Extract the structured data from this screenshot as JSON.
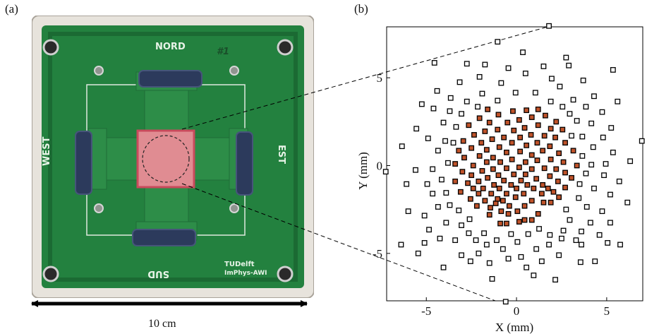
{
  "figure": {
    "panel_a_label": "(a)",
    "panel_b_label": "(b)",
    "scale_bar_label": "10 cm"
  },
  "photo": {
    "board_labels": {
      "north": "NORD",
      "south": "SUD",
      "west": "WEST",
      "east": "EST",
      "number": "#1",
      "logo_line1": "TUDelft",
      "logo_line2": "ImPhys-AWI"
    },
    "colors": {
      "pcb": "#23813f",
      "pcb_dark": "#1b6a33",
      "acrylic": "#e7e3dc",
      "flex_cable": "#2c3a5c",
      "transducer": "#e08c92",
      "transducer_border": "#c94a5c"
    }
  },
  "chart_data": {
    "type": "scatter",
    "title": "",
    "xlabel": "X (mm)",
    "ylabel": "Y (mm)",
    "xlim": [
      -7.2,
      7.0
    ],
    "ylim": [
      -7.7,
      7.9
    ],
    "xticks": [
      -5,
      0,
      5
    ],
    "yticks": [
      -5,
      0,
      5
    ],
    "grid": false,
    "legend": "none",
    "colors": {
      "inner": "#c0532a",
      "outer": "#000000"
    },
    "series": [
      {
        "marker": "filled-square",
        "points": [
          [
            -0.9,
            -3.3
          ],
          [
            -0.55,
            -3.3
          ],
          [
            0.15,
            -3.2
          ],
          [
            0.85,
            -3.1
          ],
          [
            0.45,
            -3.1
          ],
          [
            -1.5,
            -2.8
          ],
          [
            -0.45,
            -2.75
          ],
          [
            1.2,
            -2.75
          ],
          [
            -0.85,
            -2.6
          ],
          [
            0.05,
            -2.6
          ],
          [
            -1.45,
            -2.4
          ],
          [
            -2.2,
            -2.3
          ],
          [
            -0.4,
            -2.3
          ],
          [
            0.45,
            -2.3
          ],
          [
            -1.15,
            -2.15
          ],
          [
            1.9,
            -2.1
          ],
          [
            1.5,
            -2.1
          ],
          [
            -1.75,
            -2
          ],
          [
            -0.75,
            -2
          ],
          [
            0.85,
            -2
          ],
          [
            -2.55,
            -1.9
          ],
          [
            -1.05,
            -1.9
          ],
          [
            2.35,
            -1.8
          ],
          [
            -0.05,
            -1.8
          ],
          [
            -2.1,
            -1.6
          ],
          [
            -1.4,
            -1.6
          ],
          [
            -0.55,
            -1.6
          ],
          [
            0.4,
            -1.6
          ],
          [
            1.4,
            -1.6
          ],
          [
            -3.1,
            -1.5
          ],
          [
            2.05,
            -1.5
          ],
          [
            -1.85,
            -1.3
          ],
          [
            -2.4,
            -1.3
          ],
          [
            -0.95,
            -1.3
          ],
          [
            0,
            -1.3
          ],
          [
            0.95,
            -1.3
          ],
          [
            1.75,
            -1.3
          ],
          [
            2.7,
            -1.25
          ],
          [
            -1.25,
            -1.1
          ],
          [
            -0.3,
            -1.1
          ],
          [
            0.6,
            -1.1
          ],
          [
            1.45,
            -1.1
          ],
          [
            -2.7,
            -1
          ],
          [
            -3.4,
            -0.9
          ],
          [
            2.3,
            -0.9
          ],
          [
            -2.1,
            -0.9
          ],
          [
            -0.7,
            -0.85
          ],
          [
            0.25,
            -0.85
          ],
          [
            1.1,
            -0.75
          ],
          [
            3.05,
            -0.7
          ],
          [
            -1.6,
            -0.7
          ],
          [
            1.85,
            -0.6
          ],
          [
            -1,
            -0.55
          ],
          [
            -2.5,
            -0.55
          ],
          [
            0.5,
            -0.5
          ],
          [
            -0.15,
            -0.5
          ],
          [
            2.7,
            -0.4
          ],
          [
            -3,
            -0.35
          ],
          [
            -1.9,
            -0.3
          ],
          [
            -1.3,
            -0.2
          ],
          [
            0.85,
            -0.2
          ],
          [
            2.2,
            -0.2
          ],
          [
            1.55,
            -0.15
          ],
          [
            -0.55,
            -0.15
          ],
          [
            0.15,
            -0.1
          ],
          [
            3.35,
            0
          ],
          [
            -2.4,
            0
          ],
          [
            -3.4,
            0.1
          ],
          [
            -0.9,
            0.2
          ],
          [
            -1.65,
            0.2
          ],
          [
            0.5,
            0.2
          ],
          [
            2.6,
            0.2
          ],
          [
            1.15,
            0.3
          ],
          [
            -0.25,
            0.35
          ],
          [
            1.9,
            0.35
          ],
          [
            -2.9,
            0.45
          ],
          [
            -1.3,
            0.45
          ],
          [
            0.85,
            0.6
          ],
          [
            -2.05,
            0.55
          ],
          [
            2.35,
            0.7
          ],
          [
            -0.55,
            0.75
          ],
          [
            -3.2,
            0.85
          ],
          [
            3.15,
            0.85
          ],
          [
            0.2,
            0.8
          ],
          [
            1.45,
            0.85
          ],
          [
            -1.65,
            0.9
          ],
          [
            -2.5,
            1
          ],
          [
            1.85,
            1.1
          ],
          [
            -0.95,
            1.05
          ],
          [
            0.55,
            1.15
          ],
          [
            2.7,
            1.3
          ],
          [
            -1.95,
            1.3
          ],
          [
            -0.25,
            1.3
          ],
          [
            1.15,
            1.3
          ],
          [
            -2.95,
            1.4
          ],
          [
            -1.35,
            1.5
          ],
          [
            2.15,
            1.6
          ],
          [
            0.2,
            1.6
          ],
          [
            -0.7,
            1.6
          ],
          [
            -2.35,
            1.75
          ],
          [
            1.55,
            1.7
          ],
          [
            0.8,
            1.75
          ],
          [
            -1.75,
            1.95
          ],
          [
            -0.15,
            2
          ],
          [
            2.55,
            2.05
          ],
          [
            -1.05,
            2.05
          ],
          [
            1.9,
            2.1
          ],
          [
            0.45,
            2.15
          ],
          [
            -2.65,
            2.3
          ],
          [
            1.2,
            2.3
          ],
          [
            -1.5,
            2.45
          ],
          [
            -0.5,
            2.45
          ],
          [
            2.2,
            2.5
          ],
          [
            0.15,
            2.6
          ],
          [
            -2.05,
            2.7
          ],
          [
            0.85,
            2.75
          ],
          [
            1.6,
            2.85
          ],
          [
            -1,
            2.9
          ],
          [
            -0.2,
            3.1
          ],
          [
            0.55,
            3.15
          ],
          [
            1.2,
            3.2
          ],
          [
            -1.6,
            3.2
          ]
        ]
      },
      {
        "marker": "open-square",
        "points": [
          [
            1.8,
            7.95
          ],
          [
            -1.05,
            7.05
          ],
          [
            0.35,
            6.45
          ],
          [
            2.75,
            6.15
          ],
          [
            -4.55,
            5.85
          ],
          [
            -2.75,
            5.8
          ],
          [
            -1.75,
            5.75
          ],
          [
            -0.45,
            5.55
          ],
          [
            1.5,
            5.65
          ],
          [
            2.9,
            5.7
          ],
          [
            5.35,
            5.45
          ],
          [
            -2.05,
            5.05
          ],
          [
            1.95,
            4.95
          ],
          [
            0.5,
            5.25
          ],
          [
            -3.15,
            4.75
          ],
          [
            -0.85,
            4.7
          ],
          [
            3.7,
            4.85
          ],
          [
            -4.4,
            4.25
          ],
          [
            2.4,
            4.5
          ],
          [
            -3.65,
            3.85
          ],
          [
            4.3,
            3.95
          ],
          [
            -1.9,
            4.1
          ],
          [
            -0.05,
            4.15
          ],
          [
            1.05,
            4.15
          ],
          [
            -2.75,
            3.65
          ],
          [
            3.15,
            3.75
          ],
          [
            -1.05,
            3.7
          ],
          [
            1.9,
            3.65
          ],
          [
            -5.25,
            3.5
          ],
          [
            -4.6,
            3.25
          ],
          [
            2.55,
            3.35
          ],
          [
            -2.15,
            3.35
          ],
          [
            5.6,
            3.65
          ],
          [
            3.85,
            3.35
          ],
          [
            4.75,
            3.05
          ],
          [
            -3.7,
            3.1
          ],
          [
            -3.05,
            2.95
          ],
          [
            2.95,
            2.95
          ],
          [
            -4.05,
            2.45
          ],
          [
            3.35,
            2.55
          ],
          [
            4.15,
            2.4
          ],
          [
            5.25,
            2.15
          ],
          [
            -5.55,
            2.1
          ],
          [
            -3.35,
            2.2
          ],
          [
            4.8,
            1.6
          ],
          [
            3.65,
            1.65
          ],
          [
            -4.9,
            1.55
          ],
          [
            -3.95,
            1.4
          ],
          [
            3.05,
            1.7
          ],
          [
            6.95,
            1.4
          ],
          [
            -3.5,
            1.3
          ],
          [
            4.25,
            1.05
          ],
          [
            -6.35,
            1.1
          ],
          [
            -4.35,
            0.85
          ],
          [
            5.35,
            0.75
          ],
          [
            3.65,
            0.55
          ],
          [
            -3.8,
            0.15
          ],
          [
            4.95,
            0.1
          ],
          [
            4.15,
            0.05
          ],
          [
            6.3,
            0.25
          ],
          [
            -4.65,
            -0.2
          ],
          [
            -5.6,
            -0.25
          ],
          [
            -7.25,
            -0.35
          ],
          [
            3.85,
            -0.45
          ],
          [
            4.85,
            -0.55
          ],
          [
            -4.15,
            -0.8
          ],
          [
            3.5,
            -1.05
          ],
          [
            -4.95,
            -1.05
          ],
          [
            5.7,
            -0.9
          ],
          [
            -3.9,
            -1.55
          ],
          [
            -6.1,
            -1.05
          ],
          [
            4.3,
            -1.3
          ],
          [
            -4.65,
            -1.6
          ],
          [
            3.45,
            -1.85
          ],
          [
            5.2,
            -1.65
          ],
          [
            6.15,
            -2.1
          ],
          [
            -3.7,
            -2.25
          ],
          [
            3.9,
            -2.35
          ],
          [
            -6,
            -2.6
          ],
          [
            -4.35,
            -2.35
          ],
          [
            -3.2,
            -2.55
          ],
          [
            2.75,
            -2.5
          ],
          [
            4.75,
            -2.6
          ],
          [
            -5.1,
            -2.85
          ],
          [
            -2.6,
            -3.05
          ],
          [
            5.2,
            -3.25
          ],
          [
            -3.9,
            -3.25
          ],
          [
            2.95,
            -3.1
          ],
          [
            4.1,
            -3.25
          ],
          [
            -4.85,
            -3.65
          ],
          [
            -3.05,
            -3.4
          ],
          [
            1.25,
            -3.6
          ],
          [
            2.6,
            -3.7
          ],
          [
            3.6,
            -3.75
          ],
          [
            -1.8,
            -3.85
          ],
          [
            -2.65,
            -3.85
          ],
          [
            0.65,
            -3.9
          ],
          [
            -0.3,
            -3.9
          ],
          [
            1.85,
            -3.95
          ],
          [
            4.6,
            -3.95
          ],
          [
            -4.25,
            -4.15
          ],
          [
            -3.4,
            -4.25
          ],
          [
            2.5,
            -4.15
          ],
          [
            -2.25,
            -4.25
          ],
          [
            -1.1,
            -4.25
          ],
          [
            3.3,
            -4.25
          ],
          [
            0.05,
            -4.35
          ],
          [
            -5.1,
            -4.4
          ],
          [
            -6.4,
            -4.5
          ],
          [
            3.6,
            -4.5
          ],
          [
            5.05,
            -4.4
          ],
          [
            1.8,
            -4.5
          ],
          [
            -1.65,
            -4.5
          ],
          [
            -0.75,
            -4.75
          ],
          [
            1.1,
            -4.75
          ],
          [
            5.75,
            -4.5
          ],
          [
            -5.45,
            -5
          ],
          [
            -2.1,
            -5
          ],
          [
            -3.05,
            -5.1
          ],
          [
            2.35,
            -5.1
          ],
          [
            0.25,
            -5.2
          ],
          [
            -0.45,
            -5.3
          ],
          [
            -2.55,
            -5.45
          ],
          [
            4.35,
            -5.45
          ],
          [
            1.4,
            -5.45
          ],
          [
            -1.5,
            -5.55
          ],
          [
            3.55,
            -5.5
          ],
          [
            -4.05,
            -5.8
          ],
          [
            0.55,
            -5.8
          ],
          [
            -1.35,
            -6.45
          ],
          [
            2.15,
            -6.5
          ],
          [
            0.95,
            -6.25
          ],
          [
            -0.6,
            -7.75
          ]
        ]
      }
    ]
  }
}
